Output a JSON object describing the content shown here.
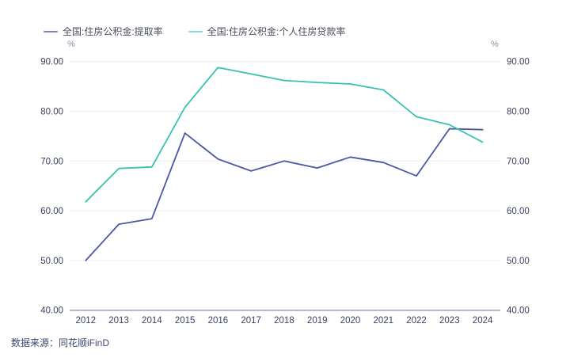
{
  "legend": {
    "items": [
      {
        "label": "全国:住房公积金:提取率",
        "marker_color": "#7d87b3"
      },
      {
        "label": "全国:住房公积金:个人住房贷款率",
        "marker_color": "#85dccf"
      }
    ]
  },
  "footer": {
    "source_text": "数据来源：同花顺iFinD"
  },
  "chart_data": {
    "type": "line",
    "title": "",
    "xlabel": "",
    "ylabel": "%",
    "unit": "%",
    "categories": [
      "2012",
      "2013",
      "2014",
      "2015",
      "2016",
      "2017",
      "2018",
      "2019",
      "2020",
      "2021",
      "2022",
      "2023",
      "2024"
    ],
    "series": [
      {
        "name": "全国:住房公积金:提取率",
        "color": "#4a57a2",
        "values": [
          50.0,
          57.3,
          58.4,
          75.6,
          70.4,
          68.0,
          70.0,
          68.6,
          70.8,
          69.7,
          67.0,
          76.5,
          76.3
        ]
      },
      {
        "name": "全国:住房公积金:个人住房贷款率",
        "color": "#35c3b0",
        "values": [
          61.8,
          68.5,
          68.8,
          80.8,
          88.8,
          87.5,
          86.2,
          85.8,
          85.5,
          84.3,
          78.9,
          77.3,
          73.8
        ]
      }
    ],
    "ylim": [
      40,
      90
    ],
    "yticks": [
      90,
      80,
      70,
      60,
      50,
      40
    ],
    "ytick_labels": [
      "90.00",
      "80.00",
      "70.00",
      "60.00",
      "50.00",
      "40.00"
    ],
    "grid": true,
    "dual_axis": true,
    "legend_position": "top-left",
    "colors": {
      "gridline": "#edeef5",
      "axis_line": "#6672a1",
      "tick_text": "#3b4263",
      "unit_text": "#8a8fa8"
    }
  }
}
